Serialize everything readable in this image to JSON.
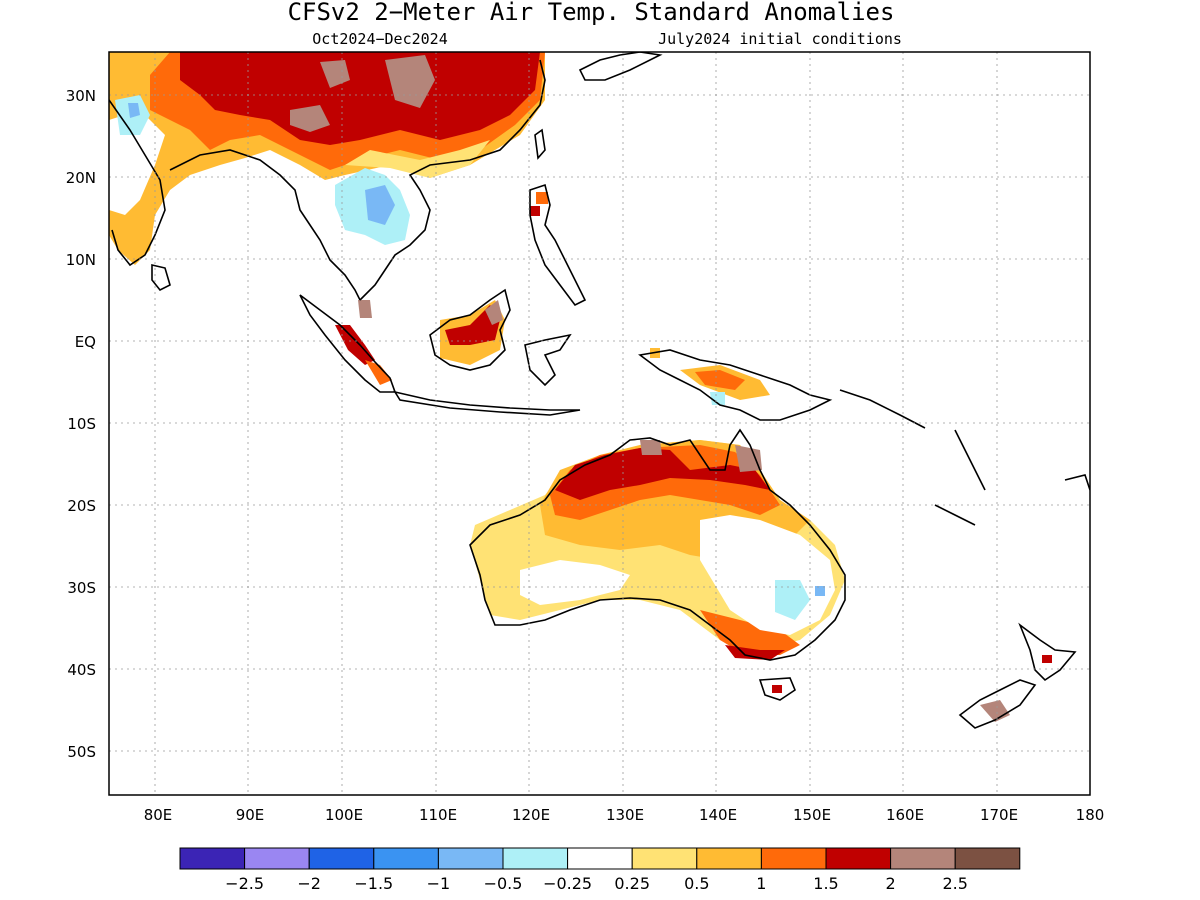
{
  "title": "CFSv2 2-Meter Air Temp. Standard Anomalies",
  "subtitle_left": "Oct2024-Dec2024",
  "subtitle_right": "July2024 initial conditions",
  "lat_labels": [
    "30N",
    "20N",
    "10N",
    "EQ",
    "10S",
    "20S",
    "30S",
    "40S",
    "50S"
  ],
  "lon_labels": [
    "80E",
    "90E",
    "100E",
    "110E",
    "120E",
    "130E",
    "140E",
    "150E",
    "160E",
    "170E",
    "180"
  ],
  "colorbar": {
    "colors": [
      "#3b24b5",
      "#9a86f2",
      "#1f63e6",
      "#3a93f2",
      "#79b8f5",
      "#aef0f7",
      "#ffffff",
      "#ffe274",
      "#ffbb33",
      "#ff6a0a",
      "#c00000",
      "#b4857a",
      "#7c5142"
    ],
    "labels": [
      "-2.5",
      "-2",
      "-1.5",
      "-1",
      "-0.5",
      "-0.25",
      "0.25",
      "0.5",
      "1",
      "1.5",
      "2",
      "2.5"
    ]
  }
}
